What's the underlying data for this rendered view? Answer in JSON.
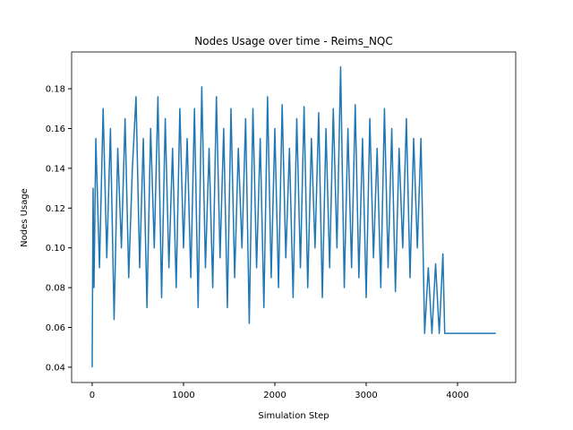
{
  "chart_data": {
    "type": "line",
    "title": "Nodes Usage over time - Reims_NQC",
    "xlabel": "Simulation Step",
    "ylabel": "Nodes Usage",
    "x": [
      0,
      10,
      20,
      40,
      80,
      120,
      160,
      200,
      240,
      280,
      320,
      360,
      400,
      440,
      480,
      520,
      560,
      600,
      640,
      680,
      720,
      760,
      800,
      840,
      880,
      920,
      960,
      1000,
      1040,
      1080,
      1120,
      1160,
      1200,
      1240,
      1280,
      1320,
      1360,
      1400,
      1440,
      1480,
      1520,
      1560,
      1600,
      1640,
      1680,
      1720,
      1760,
      1800,
      1840,
      1880,
      1920,
      1960,
      2000,
      2040,
      2080,
      2120,
      2160,
      2200,
      2240,
      2280,
      2320,
      2360,
      2400,
      2440,
      2480,
      2520,
      2560,
      2600,
      2640,
      2680,
      2720,
      2760,
      2800,
      2840,
      2880,
      2920,
      2960,
      3000,
      3040,
      3080,
      3120,
      3160,
      3200,
      3240,
      3280,
      3320,
      3360,
      3400,
      3440,
      3480,
      3520,
      3560,
      3600,
      3640,
      3680,
      3720,
      3760,
      3800,
      3840,
      3860,
      4420
    ],
    "values": [
      0.04,
      0.13,
      0.08,
      0.155,
      0.09,
      0.17,
      0.095,
      0.16,
      0.064,
      0.15,
      0.1,
      0.165,
      0.085,
      0.14,
      0.176,
      0.09,
      0.155,
      0.07,
      0.16,
      0.1,
      0.176,
      0.075,
      0.165,
      0.09,
      0.15,
      0.08,
      0.17,
      0.1,
      0.155,
      0.085,
      0.17,
      0.07,
      0.181,
      0.09,
      0.15,
      0.08,
      0.176,
      0.095,
      0.16,
      0.07,
      0.17,
      0.085,
      0.15,
      0.1,
      0.165,
      0.062,
      0.17,
      0.09,
      0.155,
      0.07,
      0.176,
      0.085,
      0.16,
      0.08,
      0.172,
      0.095,
      0.15,
      0.075,
      0.165,
      0.09,
      0.171,
      0.08,
      0.155,
      0.1,
      0.168,
      0.075,
      0.16,
      0.09,
      0.17,
      0.1,
      0.191,
      0.08,
      0.16,
      0.09,
      0.172,
      0.085,
      0.155,
      0.075,
      0.165,
      0.095,
      0.15,
      0.08,
      0.17,
      0.09,
      0.16,
      0.078,
      0.15,
      0.1,
      0.165,
      0.085,
      0.155,
      0.1,
      0.155,
      0.057,
      0.09,
      0.057,
      0.092,
      0.057,
      0.097,
      0.057,
      0.057
    ],
    "color": "#1f77b4",
    "xlim": [
      -225,
      4637
    ],
    "xticks": [
      0,
      1000,
      2000,
      3000,
      4000
    ],
    "ylim": [
      0.0323,
      0.1985
    ],
    "yticks": [
      0.04,
      0.06,
      0.08,
      {
        "value": 0.1,
        "label": "0.10"
      },
      0.12,
      0.14,
      0.16,
      0.18
    ],
    "grid": false
  }
}
